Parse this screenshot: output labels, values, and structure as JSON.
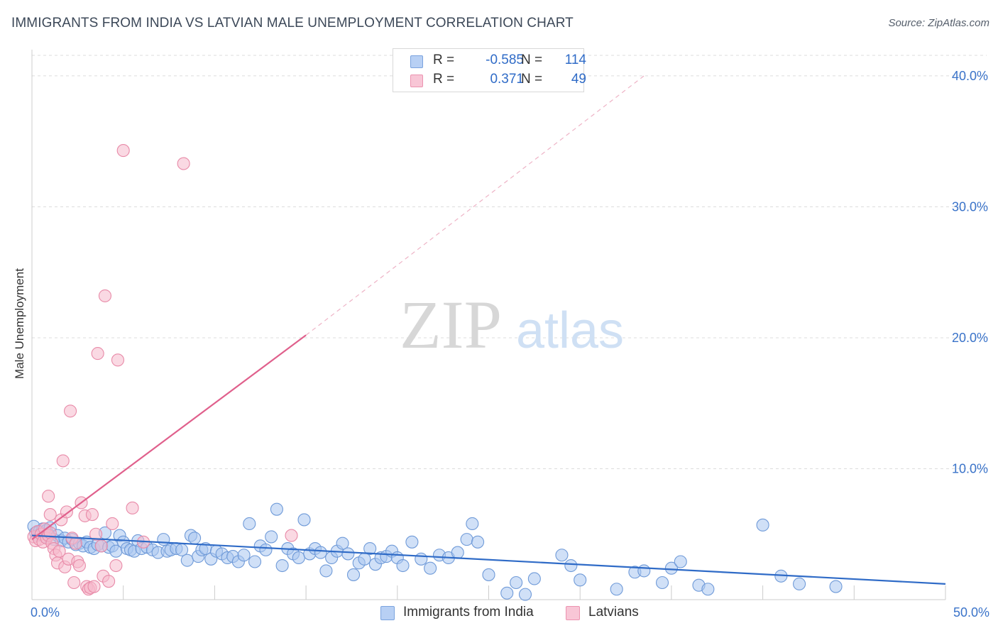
{
  "header": {
    "title": "IMMIGRANTS FROM INDIA VS LATVIAN MALE UNEMPLOYMENT CORRELATION CHART",
    "source": "Source: ZipAtlas.com"
  },
  "watermark": {
    "part1": "ZIP",
    "part2": "atlas"
  },
  "legend_top": {
    "rows": [
      {
        "r_label": "R =",
        "r_value": "-0.585",
        "n_label": "N =",
        "n_value": "114"
      },
      {
        "r_label": "R =",
        "r_value": "0.371",
        "n_label": "N =",
        "n_value": "49"
      }
    ]
  },
  "colors": {
    "blue_fill": "#a9c6f0",
    "blue_stroke": "#6f9ad8",
    "blue_line": "#2f6bc7",
    "pink_fill": "#f6b9cc",
    "pink_stroke": "#e88aa8",
    "pink_line": "#e0608c",
    "grid": "#dcdcdc",
    "tick_label": "#3a73c9"
  },
  "chart_data": {
    "type": "scatter",
    "title": "IMMIGRANTS FROM INDIA VS LATVIAN MALE UNEMPLOYMENT CORRELATION CHART",
    "xlabel": "",
    "ylabel": "Male Unemployment",
    "xlim": [
      0,
      50
    ],
    "ylim": [
      0,
      42
    ],
    "x_tick_labels": [
      {
        "value": 0,
        "label": "0.0%"
      },
      {
        "value": 50,
        "label": "50.0%"
      }
    ],
    "y_tick_labels": [
      {
        "value": 10,
        "label": "10.0%"
      },
      {
        "value": 20,
        "label": "20.0%"
      },
      {
        "value": 30,
        "label": "30.0%"
      },
      {
        "value": 40,
        "label": "40.0%"
      }
    ],
    "x_minor_ticks": [
      0,
      5,
      10,
      15,
      20,
      25,
      30,
      35,
      40,
      45,
      50
    ],
    "series": [
      {
        "name": "Immigrants from India",
        "color": "#a9c6f0",
        "r": -0.585,
        "n": 114,
        "trend": {
          "x": [
            0,
            50
          ],
          "y": [
            4.9,
            1.2
          ],
          "style": "solid"
        },
        "points": [
          [
            0.1,
            5.6
          ],
          [
            0.2,
            5.1
          ],
          [
            0.3,
            4.9
          ],
          [
            0.4,
            5.2
          ],
          [
            0.5,
            5.0
          ],
          [
            0.6,
            5.4
          ],
          [
            0.7,
            4.8
          ],
          [
            0.8,
            5.3
          ],
          [
            0.9,
            5.0
          ],
          [
            1.0,
            5.5
          ],
          [
            1.2,
            4.6
          ],
          [
            1.4,
            4.9
          ],
          [
            1.6,
            4.5
          ],
          [
            1.8,
            4.7
          ],
          [
            2.0,
            4.4
          ],
          [
            2.2,
            4.6
          ],
          [
            2.4,
            4.2
          ],
          [
            2.6,
            4.3
          ],
          [
            2.8,
            4.1
          ],
          [
            3.0,
            4.4
          ],
          [
            3.2,
            4.0
          ],
          [
            3.4,
            3.9
          ],
          [
            3.6,
            4.2
          ],
          [
            3.8,
            4.1
          ],
          [
            4.0,
            5.1
          ],
          [
            4.2,
            4.0
          ],
          [
            4.4,
            4.1
          ],
          [
            4.6,
            3.7
          ],
          [
            4.8,
            4.9
          ],
          [
            5.0,
            4.4
          ],
          [
            5.2,
            3.9
          ],
          [
            5.4,
            3.8
          ],
          [
            5.6,
            3.7
          ],
          [
            5.8,
            4.5
          ],
          [
            6.0,
            3.9
          ],
          [
            6.3,
            4.0
          ],
          [
            6.6,
            3.8
          ],
          [
            6.9,
            3.6
          ],
          [
            7.2,
            4.6
          ],
          [
            7.4,
            3.7
          ],
          [
            7.6,
            3.8
          ],
          [
            7.9,
            3.9
          ],
          [
            8.2,
            3.8
          ],
          [
            8.5,
            3.0
          ],
          [
            8.7,
            4.9
          ],
          [
            8.9,
            4.7
          ],
          [
            9.1,
            3.3
          ],
          [
            9.3,
            3.8
          ],
          [
            9.5,
            3.9
          ],
          [
            9.8,
            3.1
          ],
          [
            10.1,
            3.7
          ],
          [
            10.4,
            3.5
          ],
          [
            10.7,
            3.2
          ],
          [
            11.0,
            3.3
          ],
          [
            11.3,
            2.9
          ],
          [
            11.6,
            3.4
          ],
          [
            11.9,
            5.8
          ],
          [
            12.2,
            2.9
          ],
          [
            12.5,
            4.1
          ],
          [
            12.8,
            3.8
          ],
          [
            13.1,
            4.8
          ],
          [
            13.4,
            6.9
          ],
          [
            13.7,
            2.6
          ],
          [
            14.0,
            3.9
          ],
          [
            14.3,
            3.5
          ],
          [
            14.6,
            3.2
          ],
          [
            14.9,
            6.1
          ],
          [
            15.2,
            3.5
          ],
          [
            15.5,
            3.9
          ],
          [
            15.8,
            3.6
          ],
          [
            16.1,
            2.2
          ],
          [
            16.4,
            3.2
          ],
          [
            16.7,
            3.7
          ],
          [
            17.0,
            4.3
          ],
          [
            17.3,
            3.5
          ],
          [
            17.6,
            1.9
          ],
          [
            17.9,
            2.8
          ],
          [
            18.2,
            3.1
          ],
          [
            18.5,
            3.9
          ],
          [
            18.8,
            2.7
          ],
          [
            19.1,
            3.2
          ],
          [
            19.4,
            3.3
          ],
          [
            19.7,
            3.7
          ],
          [
            20.0,
            3.2
          ],
          [
            20.3,
            2.6
          ],
          [
            20.8,
            4.4
          ],
          [
            21.3,
            3.1
          ],
          [
            21.8,
            2.4
          ],
          [
            22.3,
            3.4
          ],
          [
            22.8,
            3.2
          ],
          [
            23.3,
            3.6
          ],
          [
            23.8,
            4.6
          ],
          [
            24.1,
            5.8
          ],
          [
            24.4,
            4.4
          ],
          [
            25.0,
            1.9
          ],
          [
            26.0,
            0.5
          ],
          [
            26.5,
            1.3
          ],
          [
            27.0,
            0.4
          ],
          [
            27.5,
            1.6
          ],
          [
            29.0,
            3.4
          ],
          [
            29.5,
            2.6
          ],
          [
            30.0,
            1.5
          ],
          [
            32.0,
            0.8
          ],
          [
            33.0,
            2.1
          ],
          [
            33.5,
            2.2
          ],
          [
            34.5,
            1.3
          ],
          [
            35.0,
            2.4
          ],
          [
            35.5,
            2.9
          ],
          [
            36.5,
            1.1
          ],
          [
            37.0,
            0.8
          ],
          [
            40.0,
            5.7
          ],
          [
            41.0,
            1.8
          ],
          [
            42.0,
            1.2
          ],
          [
            44.0,
            1.0
          ]
        ]
      },
      {
        "name": "Latvians",
        "color": "#f6b9cc",
        "r": 0.371,
        "n": 49,
        "trend": {
          "x": [
            0,
            15
          ],
          "y": [
            4.6,
            20.2
          ],
          "style": "solid"
        },
        "trend_extension": {
          "x": [
            15,
            33.5
          ],
          "y": [
            20.2,
            40.0
          ],
          "style": "dashed"
        },
        "points": [
          [
            0.1,
            4.8
          ],
          [
            0.2,
            4.5
          ],
          [
            0.3,
            5.2
          ],
          [
            0.4,
            4.6
          ],
          [
            0.5,
            5.0
          ],
          [
            0.6,
            4.4
          ],
          [
            0.7,
            5.4
          ],
          [
            0.8,
            4.7
          ],
          [
            0.9,
            4.9
          ],
          [
            1.0,
            5.1
          ],
          [
            1.1,
            4.3
          ],
          [
            0.9,
            7.9
          ],
          [
            1.0,
            6.5
          ],
          [
            1.2,
            3.9
          ],
          [
            1.3,
            3.4
          ],
          [
            1.4,
            2.8
          ],
          [
            1.5,
            3.7
          ],
          [
            1.6,
            6.1
          ],
          [
            1.7,
            10.6
          ],
          [
            1.8,
            2.5
          ],
          [
            1.9,
            6.7
          ],
          [
            2.0,
            3.1
          ],
          [
            2.1,
            14.4
          ],
          [
            2.2,
            4.7
          ],
          [
            2.3,
            1.3
          ],
          [
            2.4,
            4.3
          ],
          [
            2.5,
            2.9
          ],
          [
            2.6,
            2.6
          ],
          [
            2.7,
            7.4
          ],
          [
            2.9,
            6.4
          ],
          [
            3.0,
            1.0
          ],
          [
            3.1,
            0.8
          ],
          [
            3.2,
            0.9
          ],
          [
            3.3,
            6.5
          ],
          [
            3.4,
            1.0
          ],
          [
            3.5,
            5.0
          ],
          [
            3.6,
            18.8
          ],
          [
            3.8,
            4.1
          ],
          [
            3.9,
            1.8
          ],
          [
            4.0,
            23.2
          ],
          [
            4.2,
            1.4
          ],
          [
            4.4,
            5.8
          ],
          [
            4.6,
            2.6
          ],
          [
            4.7,
            18.3
          ],
          [
            5.0,
            34.3
          ],
          [
            5.5,
            7.0
          ],
          [
            6.1,
            4.4
          ],
          [
            8.3,
            33.3
          ],
          [
            14.2,
            4.9
          ]
        ]
      }
    ]
  }
}
